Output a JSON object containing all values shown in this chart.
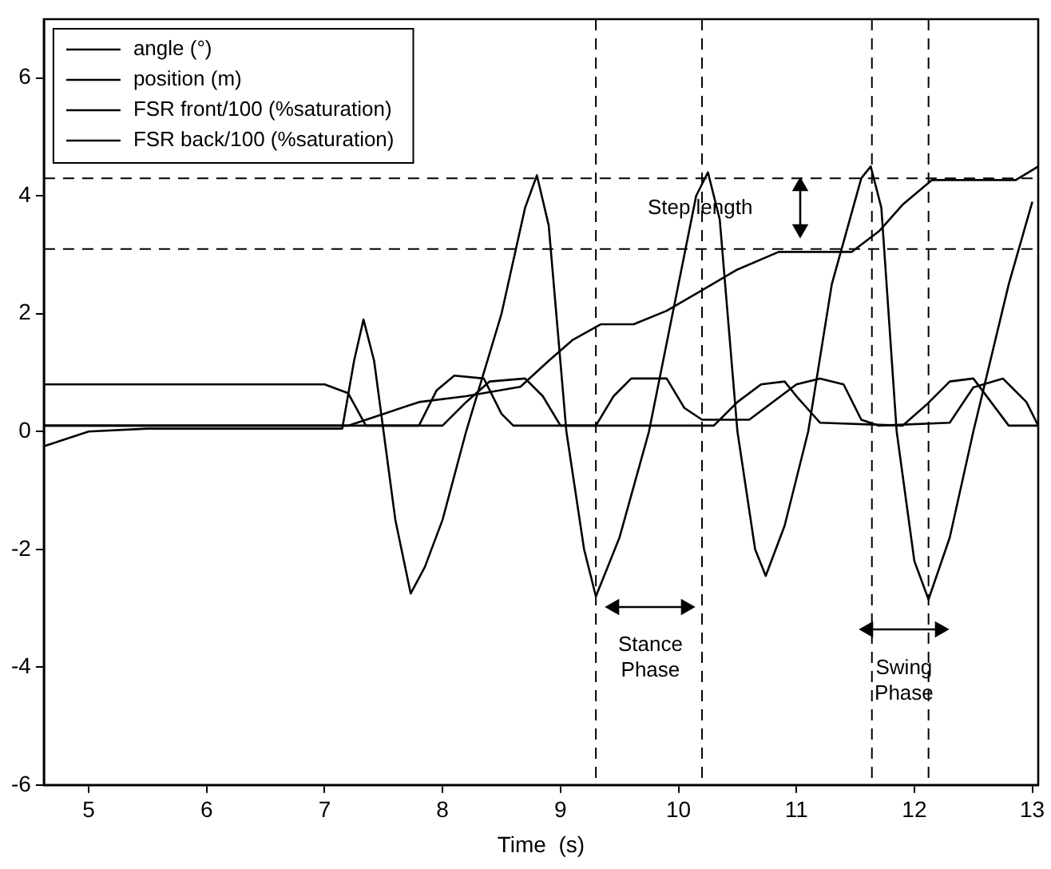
{
  "chart_data": {
    "type": "line",
    "xlabel": "Time  (s)",
    "xlim": [
      4.62,
      13.05
    ],
    "xticks": [
      5,
      6,
      7,
      8,
      9,
      10,
      11,
      12,
      13
    ],
    "ylim": [
      -6,
      7
    ],
    "yticks": [
      -6,
      -4,
      -2,
      0,
      2,
      4,
      6
    ],
    "grid": false,
    "legend": "top left",
    "marker": "none",
    "line_style": "solid",
    "series": [
      {
        "name": "angle (°)",
        "color": "#000000",
        "x": [
          4.62,
          5.0,
          5.5,
          7.15,
          7.25,
          7.33,
          7.42,
          7.5,
          7.6,
          7.73,
          7.85,
          8.0,
          8.2,
          8.5,
          8.7,
          8.8,
          8.9,
          9.05,
          9.2,
          9.3,
          9.5,
          9.75,
          10.0,
          10.15,
          10.25,
          10.35,
          10.5,
          10.65,
          10.74,
          10.9,
          11.1,
          11.3,
          11.55,
          11.63,
          11.72,
          11.85,
          12.0,
          12.12,
          12.3,
          12.5,
          12.8,
          13.0
        ],
        "values": [
          -0.25,
          0,
          0.05,
          0.05,
          1.2,
          1.9,
          1.2,
          0,
          -1.5,
          -2.75,
          -2.3,
          -1.5,
          0,
          2.0,
          3.8,
          4.35,
          3.5,
          0,
          -2.0,
          -2.8,
          -1.8,
          0,
          2.5,
          4.0,
          4.4,
          3.6,
          0,
          -2.0,
          -2.45,
          -1.6,
          0,
          2.5,
          4.3,
          4.5,
          3.8,
          0,
          -2.2,
          -2.85,
          -1.8,
          0,
          2.5,
          3.9
        ]
      },
      {
        "name": "position (m)",
        "color": "#000000",
        "x": [
          4.62,
          7.2,
          7.5,
          7.8,
          8.2,
          8.66,
          8.9,
          9.1,
          9.34,
          9.62,
          9.9,
          10.2,
          10.5,
          10.85,
          11.47,
          11.7,
          11.9,
          12.15,
          12.86,
          13.05
        ],
        "values": [
          0.1,
          0.1,
          0.3,
          0.5,
          0.6,
          0.76,
          1.2,
          1.55,
          1.82,
          1.82,
          2.05,
          2.4,
          2.75,
          3.05,
          3.05,
          3.4,
          3.85,
          4.27,
          4.27,
          4.5
        ]
      },
      {
        "name": "FSR front/100 (%saturation)",
        "color": "#000000",
        "x": [
          4.62,
          8.0,
          8.2,
          8.4,
          8.7,
          8.85,
          9.0,
          10.3,
          10.5,
          10.7,
          10.9,
          11.0,
          11.2,
          11.9,
          12.1,
          12.3,
          12.5,
          12.65,
          12.8,
          13.05
        ],
        "values": [
          0.1,
          0.1,
          0.5,
          0.85,
          0.9,
          0.6,
          0.1,
          0.1,
          0.5,
          0.8,
          0.85,
          0.6,
          0.15,
          0.1,
          0.45,
          0.85,
          0.9,
          0.5,
          0.1,
          0.1
        ]
      },
      {
        "name": "FSR back/100 (%saturation)",
        "color": "#000000",
        "x": [
          4.62,
          7.0,
          7.2,
          7.35,
          7.8,
          7.95,
          8.1,
          8.35,
          8.5,
          8.6,
          9.3,
          9.45,
          9.6,
          9.9,
          10.05,
          10.2,
          10.6,
          11.0,
          11.2,
          11.4,
          11.55,
          11.7,
          12.3,
          12.5,
          12.75,
          12.95,
          13.05
        ],
        "values": [
          0.8,
          0.8,
          0.65,
          0.1,
          0.1,
          0.7,
          0.95,
          0.9,
          0.3,
          0.1,
          0.1,
          0.6,
          0.9,
          0.9,
          0.4,
          0.2,
          0.2,
          0.8,
          0.9,
          0.8,
          0.2,
          0.1,
          0.15,
          0.75,
          0.9,
          0.5,
          0.1
        ]
      }
    ],
    "ref_lines": [
      {
        "axis": "x",
        "value": 9.3,
        "line_style": "dashed",
        "color": "#000000"
      },
      {
        "axis": "x",
        "value": 10.2,
        "line_style": "dashed",
        "color": "#000000"
      },
      {
        "axis": "x",
        "value": 11.64,
        "line_style": "dashed",
        "color": "#000000"
      },
      {
        "axis": "x",
        "value": 12.12,
        "line_style": "dashed",
        "color": "#000000"
      },
      {
        "axis": "y",
        "value": 4.3,
        "line_style": "dashed",
        "color": "#000000"
      },
      {
        "axis": "y",
        "value": 3.1,
        "line_style": "dashed",
        "color": "#000000"
      }
    ],
    "annotations": [
      "Step length",
      "Stance\nPhase",
      "Swing\nPhase"
    ]
  }
}
